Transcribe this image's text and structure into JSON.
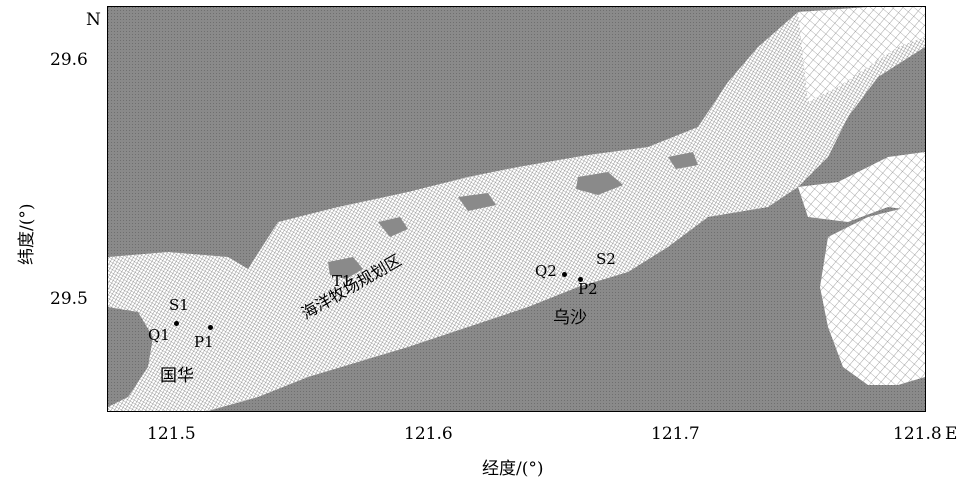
{
  "map": {
    "axes": {
      "x_ticks": [
        "121.5",
        "121.6",
        "121.7",
        "121.8"
      ],
      "x_suffix": "E",
      "y_ticks": [
        "29.6",
        "29.5"
      ],
      "y_suffix": "N",
      "x_title": "经度/(°)",
      "y_title": "纬度/(°)"
    },
    "places": {
      "guohua": "国华",
      "wusha": "乌沙",
      "ranch": "海洋牧场规划区"
    },
    "stations": {
      "S1": "S1",
      "Q1": "Q1",
      "P1": "P1",
      "T1": "T1",
      "Q2": "Q2",
      "S2": "S2",
      "P2": "P2"
    },
    "colors": {
      "land": "#8a8a8a",
      "mesh": "#ffffff",
      "text": "#000000"
    }
  }
}
